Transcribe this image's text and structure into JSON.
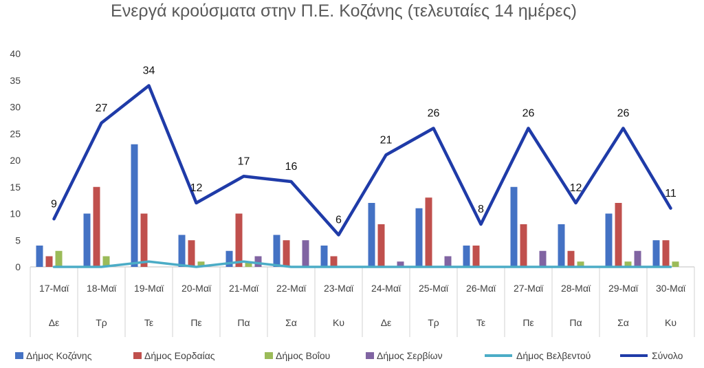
{
  "chart_data": {
    "type": "bar",
    "title": "Ενεργά κρούσματα στην Π.Ε. Κοζάνης (τελευταίες 14 ημέρες)",
    "categories": [
      "17-Μαϊ",
      "18-Μαϊ",
      "19-Μαϊ",
      "20-Μαϊ",
      "21-Μαϊ",
      "22-Μαϊ",
      "23-Μαϊ",
      "24-Μαϊ",
      "25-Μαϊ",
      "26-Μαϊ",
      "27-Μαϊ",
      "28-Μαϊ",
      "29-Μαϊ",
      "30-Μαϊ"
    ],
    "weekdays": [
      "Δε",
      "Τρ",
      "Τε",
      "Πε",
      "Πα",
      "Σα",
      "Κυ",
      "Δε",
      "Τρ",
      "Τε",
      "Πε",
      "Πα",
      "Σα",
      "Κυ"
    ],
    "ylim": [
      0,
      40
    ],
    "yticks": [
      0,
      5,
      10,
      15,
      20,
      25,
      30,
      35,
      40
    ],
    "grid": false,
    "legend_position": "bottom",
    "series": [
      {
        "name": "Δήμος Κοζάνης",
        "kind": "bar",
        "color": "#4472C4",
        "values": [
          4,
          10,
          23,
          6,
          3,
          6,
          4,
          12,
          11,
          4,
          15,
          8,
          10,
          5
        ]
      },
      {
        "name": "Δήμος Εορδαίας",
        "kind": "bar",
        "color": "#C0504D",
        "values": [
          2,
          15,
          10,
          5,
          10,
          5,
          2,
          8,
          13,
          4,
          8,
          3,
          12,
          5
        ]
      },
      {
        "name": "Δήμος Βοΐου",
        "kind": "bar",
        "color": "#9BBB59",
        "values": [
          3,
          2,
          0,
          1,
          1,
          0,
          0,
          0,
          0,
          0,
          0,
          1,
          1,
          1
        ]
      },
      {
        "name": "Δήμος Σερβίων",
        "kind": "bar",
        "color": "#8064A2",
        "values": [
          0,
          0,
          0,
          0,
          2,
          5,
          0,
          1,
          2,
          0,
          3,
          0,
          3,
          0
        ]
      },
      {
        "name": "Δήμος Βελβεντού",
        "kind": "line",
        "color": "#4BACC6",
        "values": [
          0,
          0,
          1,
          0,
          1,
          0,
          0,
          0,
          0,
          0,
          0,
          0,
          0,
          0
        ]
      },
      {
        "name": "Σύνολο",
        "kind": "line",
        "color": "#1F3BA8",
        "values": [
          9,
          27,
          34,
          12,
          17,
          16,
          6,
          21,
          26,
          8,
          26,
          12,
          26,
          11
        ],
        "data_labels": true
      }
    ]
  }
}
